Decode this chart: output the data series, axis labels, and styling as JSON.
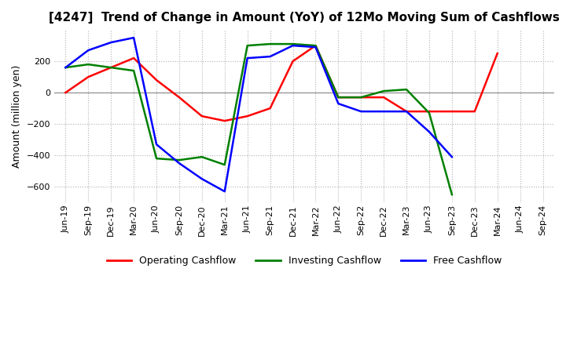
{
  "title": "[4247]  Trend of Change in Amount (YoY) of 12Mo Moving Sum of Cashflows",
  "ylabel": "Amount (million yen)",
  "x_labels": [
    "Jun-19",
    "Sep-19",
    "Dec-19",
    "Mar-20",
    "Jun-20",
    "Sep-20",
    "Dec-20",
    "Mar-21",
    "Jun-21",
    "Sep-21",
    "Dec-21",
    "Mar-22",
    "Jun-22",
    "Sep-22",
    "Dec-22",
    "Mar-23",
    "Jun-23",
    "Sep-23",
    "Dec-23",
    "Mar-24",
    "Jun-24",
    "Sep-24"
  ],
  "operating": [
    0,
    100,
    160,
    220,
    80,
    -30,
    -150,
    -180,
    -150,
    -100,
    200,
    300,
    -30,
    -30,
    -30,
    -120,
    -120,
    -120,
    -120,
    250,
    null,
    null
  ],
  "investing": [
    160,
    180,
    160,
    140,
    -420,
    -430,
    -410,
    -460,
    300,
    310,
    310,
    300,
    -30,
    -30,
    10,
    20,
    -130,
    -650,
    null,
    null,
    null,
    null
  ],
  "free": [
    160,
    270,
    320,
    350,
    -330,
    -450,
    -550,
    -630,
    220,
    230,
    300,
    290,
    -70,
    -120,
    -120,
    -120,
    -250,
    -410,
    null,
    null,
    null,
    null
  ],
  "operating_color": "#ff0000",
  "investing_color": "#008000",
  "free_color": "#0000ff",
  "ylim": [
    -700,
    400
  ],
  "yticks": [
    -600,
    -400,
    -200,
    0,
    200
  ],
  "background_color": "#ffffff",
  "grid_color": "#b0b0b0",
  "title_fontsize": 11,
  "tick_fontsize": 8,
  "ylabel_fontsize": 9
}
